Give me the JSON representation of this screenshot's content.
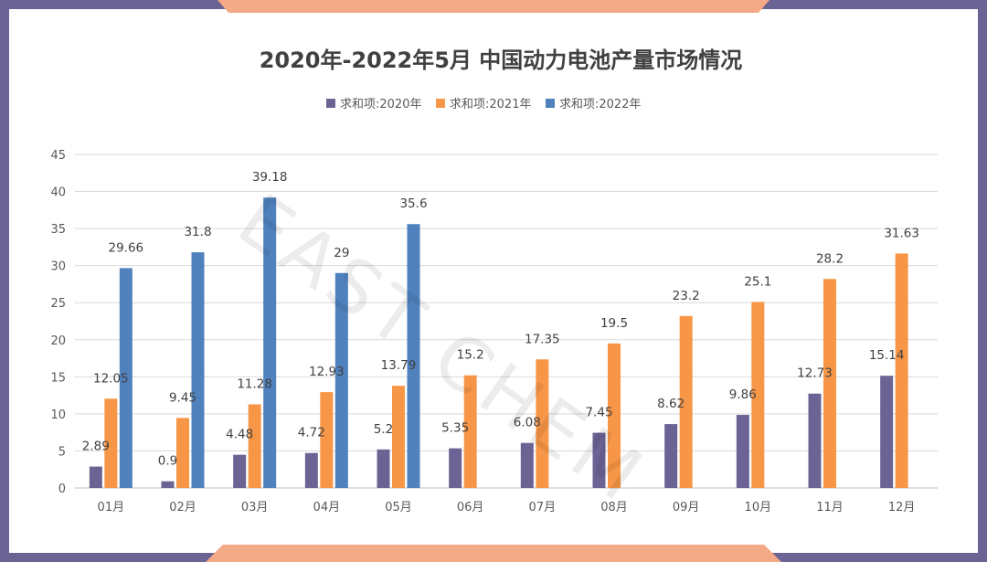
{
  "chart_data": {
    "type": "bar",
    "title": "2020年-2022年5月 中国动力电池产量市场情况",
    "categories": [
      "01月",
      "02月",
      "03月",
      "04月",
      "05月",
      "06月",
      "07月",
      "08月",
      "09月",
      "10月",
      "11月",
      "12月"
    ],
    "series": [
      {
        "name": "求和项:2020年",
        "color": "#6b6394",
        "values": [
          2.89,
          0.9,
          4.48,
          4.72,
          5.2,
          5.35,
          6.08,
          7.45,
          8.62,
          9.86,
          12.73,
          15.14
        ]
      },
      {
        "name": "求和项:2021年",
        "color": "#f79646",
        "values": [
          12.05,
          9.45,
          11.28,
          12.93,
          13.79,
          15.2,
          17.35,
          19.5,
          23.2,
          25.1,
          28.2,
          31.63
        ]
      },
      {
        "name": "求和项:2022年",
        "color": "#4f81bd",
        "values": [
          29.66,
          31.8,
          39.18,
          29,
          35.6,
          null,
          null,
          null,
          null,
          null,
          null,
          null
        ]
      }
    ],
    "ylim": [
      0,
      45
    ],
    "yticks": [
      0,
      5,
      10,
      15,
      20,
      25,
      30,
      35,
      40,
      45
    ],
    "xlabel": "",
    "ylabel": "",
    "grid": true,
    "legend": "top-center",
    "watermark": "EAST CHEM"
  }
}
